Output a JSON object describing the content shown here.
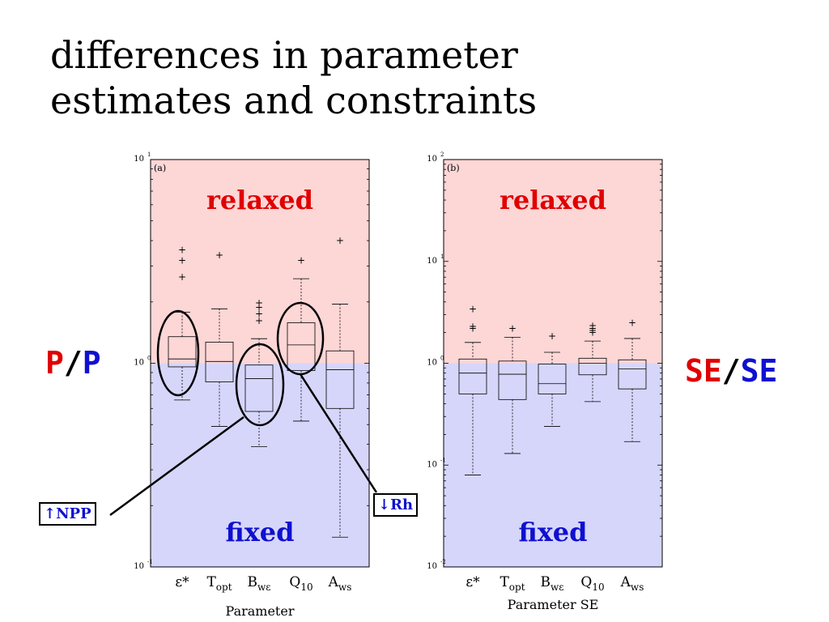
{
  "slide": {
    "title_line1": "differences in parameter",
    "title_line2": "estimates and constraints",
    "left_label": {
      "num": "P",
      "slash": "/",
      "den": "P"
    },
    "right_label": {
      "num": "SE",
      "slash": "/",
      "den": "SE"
    },
    "callout_npp": "↑NPP",
    "callout_rh": "↓Rh",
    "colors": {
      "relaxed_region": "#fdd6d6",
      "fixed_region": "#d6d6fb",
      "red_text": "#e00000",
      "blue_text": "#1010d0"
    }
  },
  "chart_data": [
    {
      "type": "box",
      "panel_label": "(a)",
      "xlabel": "Parameter",
      "ylabel": "",
      "yscale": "log",
      "ylim": [
        0.1,
        10
      ],
      "yticks": [
        {
          "base": "10",
          "exp": "-1",
          "value": 0.1
        },
        {
          "base": "10",
          "exp": "0",
          "value": 1
        },
        {
          "base": "10",
          "exp": "1",
          "value": 10
        }
      ],
      "region_labels": {
        "upper": "relaxed",
        "lower": "fixed"
      },
      "categories": [
        {
          "main": "ε*",
          "sub": ""
        },
        {
          "main": "T",
          "sub": "opt"
        },
        {
          "main": "B",
          "sub": "wε"
        },
        {
          "main": "Q",
          "sub": "10"
        },
        {
          "main": "A",
          "sub": "ws"
        }
      ],
      "boxes": [
        {
          "whisker_low": 0.66,
          "q1": 0.96,
          "median": 1.05,
          "q3": 1.35,
          "whisker_high": 1.78,
          "outliers": [
            2.65,
            3.2,
            3.6
          ]
        },
        {
          "whisker_low": 0.49,
          "q1": 0.81,
          "median": 1.02,
          "q3": 1.27,
          "whisker_high": 1.85,
          "outliers": [
            3.4
          ]
        },
        {
          "whisker_low": 0.39,
          "q1": 0.58,
          "median": 0.84,
          "q3": 0.98,
          "whisker_high": 1.32,
          "outliers": [
            1.62,
            1.75,
            1.88,
            1.98
          ]
        },
        {
          "whisker_low": 0.52,
          "q1": 0.92,
          "median": 1.23,
          "q3": 1.58,
          "whisker_high": 2.6,
          "outliers": [
            3.2
          ]
        },
        {
          "whisker_low": 0.14,
          "q1": 0.6,
          "median": 0.93,
          "q3": 1.15,
          "whisker_high": 1.95,
          "outliers": [
            4.0
          ]
        }
      ]
    },
    {
      "type": "box",
      "panel_label": "(b)",
      "xlabel": "Parameter SE",
      "ylabel": "",
      "yscale": "log",
      "ylim": [
        0.01,
        100
      ],
      "yticks": [
        {
          "base": "10",
          "exp": "-2",
          "value": 0.01
        },
        {
          "base": "10",
          "exp": "-1",
          "value": 0.1
        },
        {
          "base": "10",
          "exp": "0",
          "value": 1
        },
        {
          "base": "10",
          "exp": "1",
          "value": 10
        },
        {
          "base": "10",
          "exp": "2",
          "value": 100
        }
      ],
      "region_labels": {
        "upper": "relaxed",
        "lower": "fixed"
      },
      "categories": [
        {
          "main": "ε*",
          "sub": ""
        },
        {
          "main": "T",
          "sub": "opt"
        },
        {
          "main": "B",
          "sub": "wε"
        },
        {
          "main": "Q",
          "sub": "10"
        },
        {
          "main": "A",
          "sub": "ws"
        }
      ],
      "boxes": [
        {
          "whisker_low": 0.08,
          "q1": 0.5,
          "median": 0.8,
          "q3": 1.1,
          "whisker_high": 1.6,
          "outliers": [
            2.2,
            2.3,
            3.4
          ]
        },
        {
          "whisker_low": 0.13,
          "q1": 0.44,
          "median": 0.78,
          "q3": 1.05,
          "whisker_high": 1.8,
          "outliers": [
            2.2
          ]
        },
        {
          "whisker_low": 0.24,
          "q1": 0.5,
          "median": 0.63,
          "q3": 0.98,
          "whisker_high": 1.28,
          "outliers": [
            1.85
          ]
        },
        {
          "whisker_low": 0.42,
          "q1": 0.77,
          "median": 1.0,
          "q3": 1.12,
          "whisker_high": 1.65,
          "outliers": [
            2.0,
            2.1,
            2.2,
            2.35
          ]
        },
        {
          "whisker_low": 0.17,
          "q1": 0.56,
          "median": 0.88,
          "q3": 1.08,
          "whisker_high": 1.75,
          "outliers": [
            2.5
          ]
        }
      ]
    }
  ]
}
